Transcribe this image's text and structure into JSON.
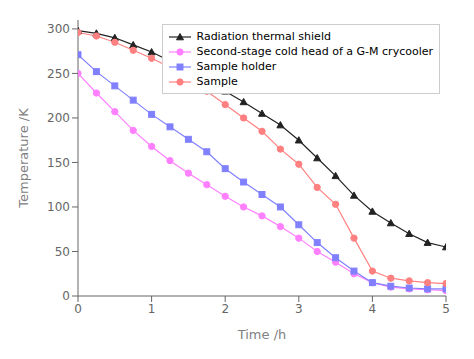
{
  "chart_data": {
    "type": "line",
    "title": "",
    "xlabel": "Time /h",
    "ylabel": "Temperature /K",
    "x": [
      0.0,
      0.25,
      0.5,
      0.75,
      1.0,
      1.25,
      1.5,
      1.75,
      2.0,
      2.25,
      2.5,
      2.75,
      3.0,
      3.25,
      3.5,
      3.75,
      4.0,
      4.25,
      4.5,
      4.75,
      5.0
    ],
    "xlim": [
      0,
      5
    ],
    "ylim": [
      0,
      310
    ],
    "xticks": [
      0,
      1,
      2,
      3,
      4,
      5
    ],
    "yticks": [
      0,
      50,
      100,
      150,
      200,
      250,
      300
    ],
    "grid": false,
    "legend": "upper right",
    "series": [
      {
        "name": "Radiation thermal shield",
        "color": "#222222",
        "marker": "triangle",
        "values": [
          298,
          295,
          290,
          282,
          274,
          264,
          255,
          244,
          230,
          218,
          205,
          192,
          175,
          155,
          135,
          113,
          95,
          82,
          70,
          60,
          55
        ]
      },
      {
        "name": "Second-stage cold head of a G-M crycooler",
        "color": "#ff80ff",
        "marker": "circle",
        "values": [
          250,
          228,
          207,
          186,
          168,
          152,
          138,
          125,
          112,
          100,
          90,
          78,
          65,
          50,
          38,
          25,
          15,
          10,
          8,
          7,
          6
        ]
      },
      {
        "name": "Sample holder",
        "color": "#8080ff",
        "marker": "square",
        "values": [
          271,
          252,
          236,
          220,
          204,
          190,
          176,
          162,
          143,
          128,
          114,
          100,
          80,
          60,
          43,
          28,
          15,
          11,
          9,
          8,
          8
        ]
      },
      {
        "name": "Sample",
        "color": "#ff8080",
        "marker": "circle",
        "values": [
          296,
          292,
          285,
          276,
          267,
          257,
          247,
          230,
          215,
          200,
          185,
          165,
          148,
          122,
          103,
          65,
          28,
          20,
          17,
          15,
          14
        ]
      }
    ]
  }
}
